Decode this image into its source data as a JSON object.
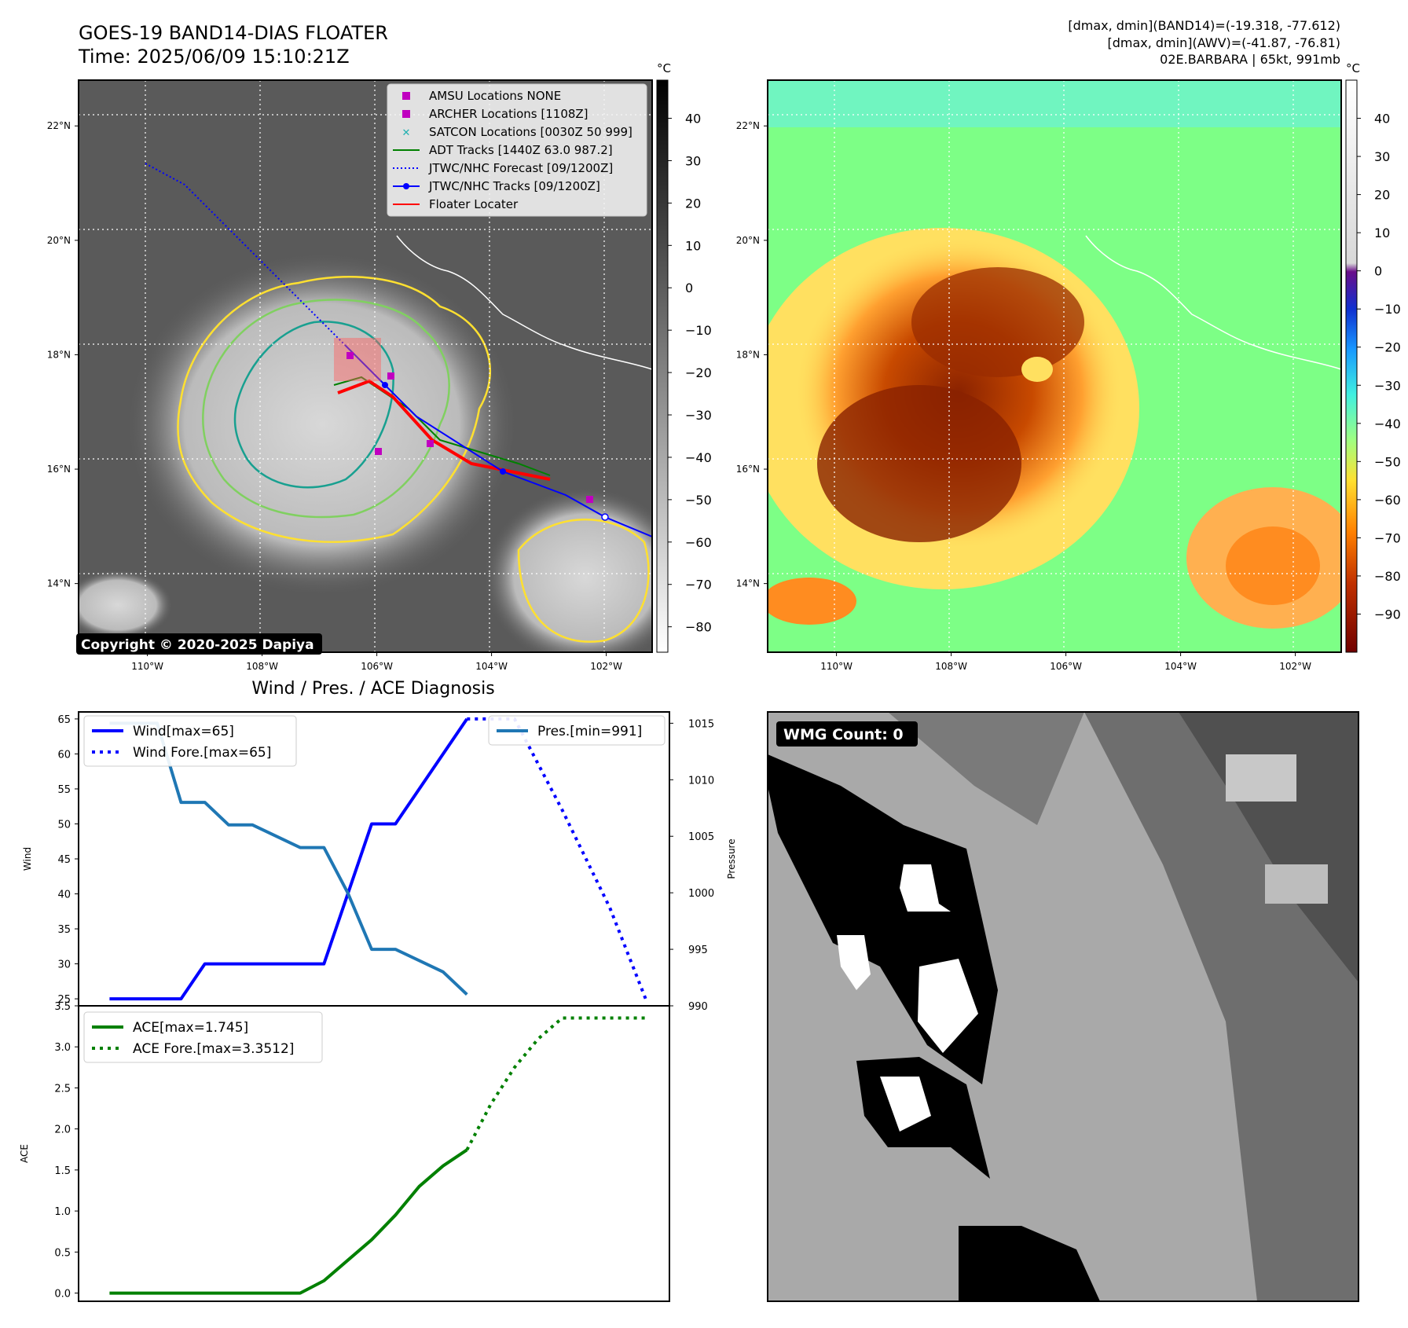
{
  "header": {
    "title": "GOES-19 BAND14-DIAS FLOATER",
    "time": "Time: 2025/06/09 15:10:21Z",
    "info_band14": "[dmax, dmin](BAND14)=(-19.318, -77.612)",
    "info_awv": "[dmax, dmin](AWV)=(-41.87, -76.81)",
    "info_storm": "02E.BARBARA | 65kt, 991mb",
    "copyright": "Copyright © 2020-2025 Dapiya",
    "wmg_count": "WMG Count: 0",
    "diag_title": "Wind / Pres. / ACE Diagnosis"
  },
  "maps": {
    "lon_ticks": [
      -110,
      -108,
      -106,
      -104,
      -102
    ],
    "lon_labels": [
      "110°W",
      "108°W",
      "106°W",
      "104°W",
      "102°W"
    ],
    "lat_ticks": [
      14,
      16,
      18,
      20,
      22
    ],
    "lat_labels": [
      "14°N",
      "16°N",
      "18°N",
      "20°N",
      "22°N"
    ],
    "lon_range": [
      -111.2,
      -101.2
    ],
    "lat_range": [
      12.8,
      22.8
    ],
    "legend": [
      {
        "label": "AMSU Locations NONE",
        "kind": "square",
        "color": "#c000c0"
      },
      {
        "label": "ARCHER Locations [1108Z]",
        "kind": "square",
        "color": "#c000c0"
      },
      {
        "label": "SATCON Locations [0030Z 50 999]",
        "kind": "cross",
        "color": "#20b0b0"
      },
      {
        "label": "ADT Tracks [1440Z 63.0 987.2]",
        "kind": "line",
        "color": "#008000"
      },
      {
        "label": "JTWC/NHC Forecast [09/1200Z]",
        "kind": "dotted",
        "color": "#0000ff"
      },
      {
        "label": "JTWC/NHC Tracks [09/1200Z]",
        "kind": "dotline",
        "color": "#0000ff"
      },
      {
        "label": "Floater Locater",
        "kind": "line",
        "color": "#ff0000"
      }
    ],
    "bt_colorbar": {
      "unit": "°C",
      "ticks": [
        40,
        30,
        20,
        10,
        0,
        -10,
        -20,
        -30,
        -40,
        -50,
        -60,
        -70,
        -80
      ]
    },
    "awv_colorbar": {
      "unit": "°C",
      "ticks": [
        40,
        30,
        20,
        10,
        0,
        -10,
        -20,
        -30,
        -40,
        -50,
        -60,
        -70,
        -80,
        -90
      ]
    },
    "colors": {
      "land_bg": "#5a5a5a",
      "ocean_bg": "#7dff86",
      "track_blue": "#0000ff",
      "floater_red": "#ff0000"
    }
  },
  "chart_data": [
    {
      "type": "line",
      "title": "Wind / Pres. / ACE Diagnosis",
      "ylabel": "Wind",
      "ylabel_right": "Pressure",
      "ylim": [
        24,
        66
      ],
      "ylim_right": [
        990,
        1016
      ],
      "y_ticks": [
        25,
        30,
        35,
        40,
        45,
        50,
        55,
        60,
        65
      ],
      "y_ticks_right": [
        990,
        995,
        1000,
        1005,
        1010,
        1015
      ],
      "series": [
        {
          "name": "Wind[max=65]",
          "axis": "left",
          "style": "solid",
          "color": "#0000ff",
          "x": [
            0,
            3,
            4,
            9,
            11,
            12,
            15
          ],
          "y": [
            25,
            25,
            30,
            30,
            50,
            50,
            65
          ]
        },
        {
          "name": "Wind Fore.[max=65]",
          "axis": "left",
          "style": "dotted",
          "color": "#0000ff",
          "x": [
            15,
            17,
            19,
            21,
            22.5
          ],
          "y": [
            65,
            65,
            52,
            38,
            25
          ]
        },
        {
          "name": "Pres.[min=991]",
          "axis": "right",
          "style": "solid",
          "color": "#1f77b4",
          "x": [
            0,
            2,
            3,
            4,
            5,
            6,
            8,
            9,
            10,
            11,
            12,
            14,
            15
          ],
          "y": [
            1015,
            1015,
            1008,
            1008,
            1006,
            1006,
            1004,
            1004,
            1000,
            995,
            995,
            993,
            991
          ]
        }
      ]
    },
    {
      "type": "line",
      "ylabel": "ACE",
      "ylim": [
        -0.1,
        3.5
      ],
      "y_ticks": [
        0.0,
        0.5,
        1.0,
        1.5,
        2.0,
        2.5,
        3.0,
        3.5
      ],
      "series": [
        {
          "name": "ACE[max=1.745]",
          "style": "solid",
          "color": "#008000",
          "x": [
            0,
            1,
            2,
            3,
            4,
            5,
            6,
            7,
            8,
            9,
            10,
            11,
            12,
            13,
            14,
            15
          ],
          "y": [
            0,
            0,
            0,
            0,
            0,
            0,
            0,
            0,
            0,
            0.15,
            0.4,
            0.65,
            0.95,
            1.3,
            1.55,
            1.745
          ]
        },
        {
          "name": "ACE Fore.[max=3.3512]",
          "style": "dotted",
          "color": "#008000",
          "x": [
            15,
            16,
            17,
            18,
            19,
            20,
            22.5
          ],
          "y": [
            1.745,
            2.3,
            2.75,
            3.1,
            3.3512,
            3.3512,
            3.3512
          ]
        }
      ]
    }
  ]
}
